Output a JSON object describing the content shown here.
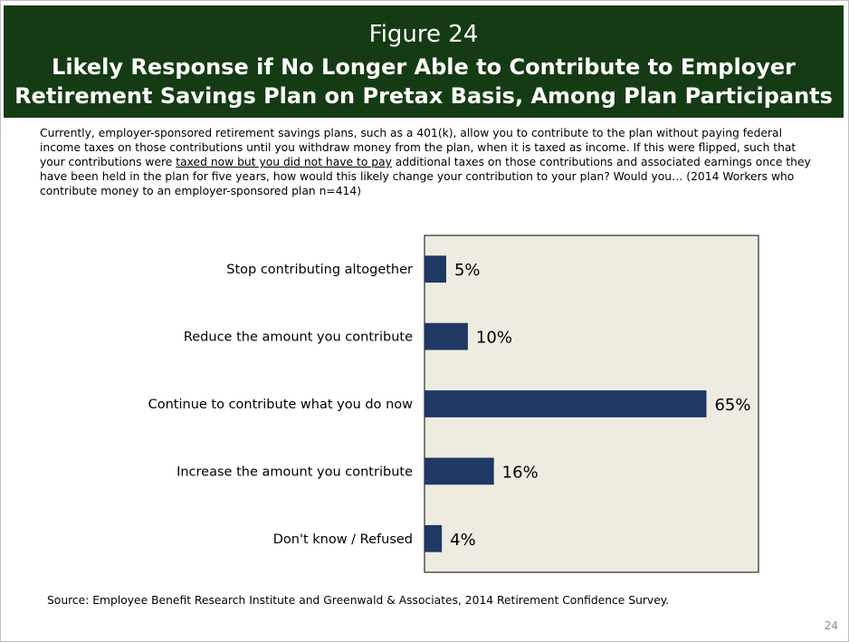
{
  "header": {
    "figure_label": "Figure 24",
    "title_line1": "Likely Response if No Longer Able to Contribute to Employer",
    "title_line2": "Retirement Savings Plan on Pretax Basis, Among Plan Participants"
  },
  "intro": {
    "before_underline": "Currently, employer-sponsored retirement savings plans, such as a 401(k), allow you to contribute to the plan without paying federal income taxes on those contributions until you withdraw money from the plan, when it is taxed as income. If this were flipped, such that your contributions were ",
    "underlined": "taxed now but you did not have to pay",
    "after_underline": " additional taxes on those contributions and associated earnings once they have been held in the plan for five years, how would this likely change your contribution to your plan? Would you… (2014 Workers who contribute money to an employer-sponsored plan n=414)"
  },
  "chart_data": {
    "type": "bar",
    "orientation": "horizontal",
    "categories": [
      "Stop contributing altogether",
      "Reduce the amount you contribute",
      "Continue to contribute what you do now",
      "Increase the amount you contribute",
      "Don't know / Refused"
    ],
    "values": [
      5,
      10,
      65,
      16,
      4
    ],
    "value_labels": [
      "5%",
      "10%",
      "65%",
      "16%",
      "4%"
    ],
    "xlim": [
      0,
      77
    ],
    "grid": false,
    "legend": "none",
    "colors": {
      "bar": "#1f3864",
      "plot_background": "#eeebe1",
      "plot_border": "#000000"
    }
  },
  "footer": {
    "source": "Source:  Employee Benefit Research Institute and Greenwald & Associates, 2014 Retirement Confidence Survey.",
    "page_number": "24"
  }
}
